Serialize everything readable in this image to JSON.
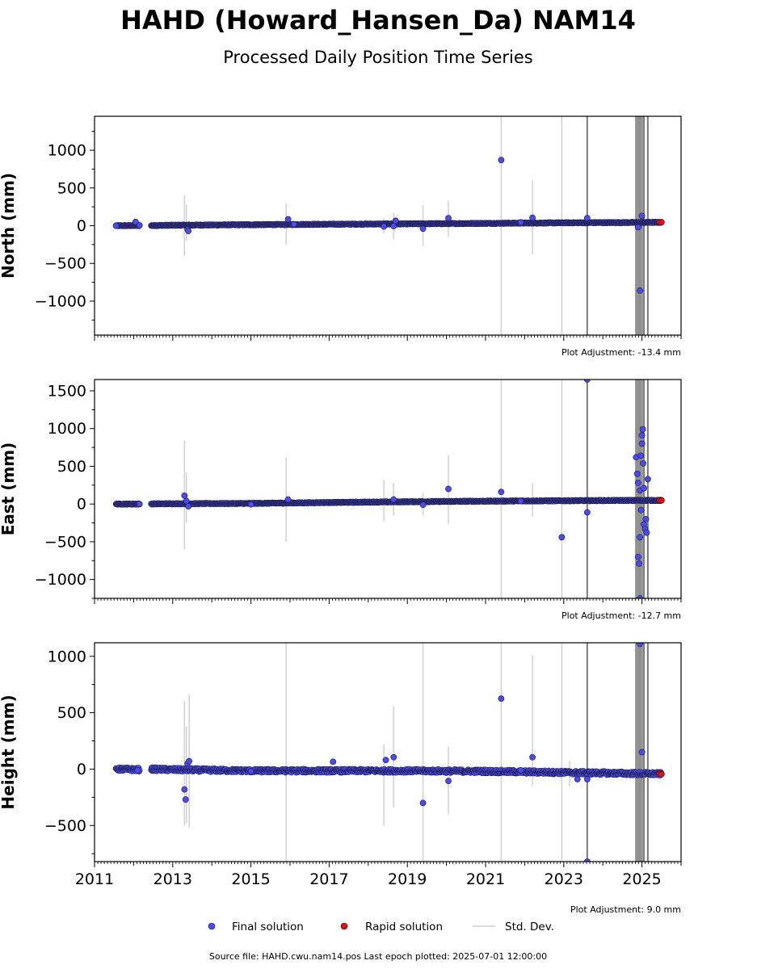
{
  "title": "HAHD (Howard_Hansen_Da) NAM14",
  "subtitle": "Processed Daily Position Time Series",
  "footer": "Source file: HAHD.cwu.nam14.pos  Last epoch plotted: 2025-07-01 12:00:00",
  "legend": {
    "final_label": "Final solution",
    "rapid_label": "Rapid solution",
    "std_label": "Std. Dev."
  },
  "colors": {
    "final": "#4b4bef",
    "final_edge": "#1a1a3a",
    "rapid": "#e01010",
    "std_light": "#d0d0d0",
    "std_dark": "#7a7a7a"
  },
  "chart_data": [
    {
      "type": "scatter",
      "ylabel": "North (mm)",
      "adjustment": "Plot Adjustment: -13.4 mm",
      "xlim": [
        2011,
        2026
      ],
      "ylim": [
        -1450,
        1450
      ],
      "yticks": [
        -1000,
        -500,
        0,
        500,
        1000
      ],
      "ytick_labels": [
        "−1000",
        "−500",
        "0",
        "500",
        "1000"
      ],
      "trend": [
        [
          2011.55,
          0
        ],
        [
          2012.15,
          2
        ],
        [
          2012.45,
          2
        ],
        [
          2013.0,
          6
        ],
        [
          2015.0,
          13
        ],
        [
          2017.0,
          19
        ],
        [
          2019.0,
          24
        ],
        [
          2021.0,
          31
        ],
        [
          2023.0,
          38
        ],
        [
          2025.0,
          43
        ],
        [
          2025.5,
          44
        ]
      ],
      "outliers": [
        [
          2011.55,
          0
        ],
        [
          2012.05,
          50
        ],
        [
          2012.15,
          5
        ],
        [
          2013.38,
          -50
        ],
        [
          2013.4,
          -70
        ],
        [
          2015.95,
          85
        ],
        [
          2016.1,
          20
        ],
        [
          2018.4,
          -10
        ],
        [
          2018.65,
          -5
        ],
        [
          2018.7,
          65
        ],
        [
          2019.4,
          -40
        ],
        [
          2020.05,
          100
        ],
        [
          2021.4,
          870
        ],
        [
          2021.9,
          45
        ],
        [
          2022.2,
          105
        ],
        [
          2023.6,
          100
        ],
        [
          2024.9,
          -20
        ],
        [
          2024.95,
          -860
        ],
        [
          2025.0,
          130
        ]
      ],
      "rapid": [
        [
          2025.45,
          44
        ],
        [
          2025.5,
          45
        ]
      ],
      "std_lines": [
        [
          2013.3,
          -400,
          400
        ],
        [
          2013.35,
          -200,
          280
        ],
        [
          2015.9,
          -250,
          290
        ],
        [
          2018.4,
          -100,
          100
        ],
        [
          2018.65,
          -180,
          170
        ],
        [
          2019.4,
          -270,
          270
        ],
        [
          2020.05,
          -150,
          330
        ],
        [
          2021.4,
          -1450,
          1450
        ],
        [
          2022.2,
          -380,
          600
        ],
        [
          2022.95,
          -1450,
          1450
        ]
      ],
      "std_dark_lines": [
        [
          2023.6,
          -1450,
          1450
        ],
        [
          2024.85,
          -1450,
          1450
        ],
        [
          2024.9,
          -1450,
          1450
        ],
        [
          2024.95,
          -1450,
          1450
        ],
        [
          2025.0,
          -1450,
          1450
        ],
        [
          2025.05,
          -1450,
          1450
        ],
        [
          2025.15,
          -1450,
          1450
        ]
      ]
    },
    {
      "type": "scatter",
      "ylabel": "East (mm)",
      "adjustment": "Plot Adjustment: -12.7 mm",
      "xlim": [
        2011,
        2026
      ],
      "ylim": [
        -1250,
        1650
      ],
      "yticks": [
        -1000,
        -500,
        0,
        500,
        1000,
        1500
      ],
      "ytick_labels": [
        "−1000",
        "−500",
        "0",
        "500",
        "1000",
        "1500"
      ],
      "trend": [
        [
          2011.55,
          0
        ],
        [
          2012.15,
          0
        ],
        [
          2012.45,
          2
        ],
        [
          2013.0,
          4
        ],
        [
          2015.0,
          8
        ],
        [
          2017.0,
          20
        ],
        [
          2019.0,
          30
        ],
        [
          2021.0,
          38
        ],
        [
          2023.0,
          44
        ],
        [
          2025.0,
          48
        ],
        [
          2025.5,
          48
        ]
      ],
      "outliers": [
        [
          2012.15,
          0
        ],
        [
          2013.3,
          110
        ],
        [
          2013.35,
          40
        ],
        [
          2013.4,
          -30
        ],
        [
          2015.0,
          -5
        ],
        [
          2015.95,
          60
        ],
        [
          2018.65,
          60
        ],
        [
          2019.4,
          -10
        ],
        [
          2020.05,
          200
        ],
        [
          2021.4,
          160
        ],
        [
          2021.9,
          40
        ],
        [
          2022.95,
          -440
        ],
        [
          2023.6,
          -110
        ],
        [
          2023.6,
          1650
        ],
        [
          2024.85,
          620
        ],
        [
          2024.88,
          400
        ],
        [
          2024.9,
          280
        ],
        [
          2024.9,
          -700
        ],
        [
          2024.93,
          -790
        ],
        [
          2024.95,
          -440
        ],
        [
          2024.95,
          180
        ],
        [
          2024.97,
          640
        ],
        [
          2024.98,
          -80
        ],
        [
          2025.0,
          910
        ],
        [
          2025.0,
          800
        ],
        [
          2025.02,
          990
        ],
        [
          2025.03,
          540
        ],
        [
          2025.05,
          -270
        ],
        [
          2025.05,
          210
        ],
        [
          2025.08,
          -330
        ],
        [
          2025.1,
          -200
        ],
        [
          2025.12,
          -380
        ],
        [
          2025.15,
          330
        ],
        [
          2024.95,
          -1250
        ]
      ],
      "rapid": [
        [
          2025.45,
          48
        ],
        [
          2025.5,
          48
        ]
      ],
      "std_lines": [
        [
          2013.3,
          -600,
          840
        ],
        [
          2013.35,
          -250,
          420
        ],
        [
          2015.9,
          -500,
          620
        ],
        [
          2018.4,
          -230,
          320
        ],
        [
          2018.65,
          -150,
          280
        ],
        [
          2019.4,
          -150,
          150
        ],
        [
          2020.05,
          -260,
          650
        ],
        [
          2021.4,
          -1250,
          1650
        ],
        [
          2022.2,
          -170,
          280
        ],
        [
          2022.95,
          -1250,
          1650
        ]
      ],
      "std_dark_lines": [
        [
          2023.6,
          -1250,
          1650
        ],
        [
          2024.85,
          -1250,
          1650
        ],
        [
          2024.9,
          -1250,
          1650
        ],
        [
          2024.95,
          -1250,
          1650
        ],
        [
          2025.0,
          -1250,
          1650
        ],
        [
          2025.05,
          -1250,
          1650
        ],
        [
          2025.15,
          -1250,
          1650
        ]
      ]
    },
    {
      "type": "scatter",
      "ylabel": "Height (mm)",
      "adjustment": "Plot Adjustment: 9.0 mm",
      "xlim": [
        2011,
        2026
      ],
      "ylim": [
        -820,
        1120
      ],
      "yticks": [
        -500,
        0,
        500,
        1000
      ],
      "ytick_labels": [
        "−500",
        "0",
        "500",
        "1000"
      ],
      "xticks": [
        2011,
        2013,
        2015,
        2017,
        2019,
        2021,
        2023,
        2025
      ],
      "xtick_labels": [
        "2011",
        "2013",
        "2015",
        "2017",
        "2019",
        "2021",
        "2023",
        "2025"
      ],
      "trend": [
        [
          2011.55,
          0
        ],
        [
          2012.15,
          -5
        ],
        [
          2012.45,
          0
        ],
        [
          2013.0,
          -5
        ],
        [
          2015.0,
          -15
        ],
        [
          2017.0,
          -15
        ],
        [
          2019.0,
          -15
        ],
        [
          2021.0,
          -20
        ],
        [
          2023.0,
          -30
        ],
        [
          2025.0,
          -40
        ],
        [
          2025.5,
          -42
        ]
      ],
      "outliers": [
        [
          2012.1,
          -10
        ],
        [
          2013.3,
          -180
        ],
        [
          2013.33,
          -270
        ],
        [
          2013.38,
          50
        ],
        [
          2013.42,
          70
        ],
        [
          2015.0,
          -20
        ],
        [
          2017.1,
          65
        ],
        [
          2018.45,
          80
        ],
        [
          2018.65,
          105
        ],
        [
          2019.4,
          -300
        ],
        [
          2020.05,
          -105
        ],
        [
          2021.4,
          625
        ],
        [
          2021.9,
          -10
        ],
        [
          2022.2,
          105
        ],
        [
          2023.35,
          -90
        ],
        [
          2023.6,
          -90
        ],
        [
          2023.6,
          -820
        ],
        [
          2024.95,
          1110
        ],
        [
          2025.0,
          150
        ]
      ],
      "rapid": [
        [
          2025.45,
          -40
        ],
        [
          2025.5,
          -45
        ]
      ],
      "std_lines": [
        [
          2013.3,
          -500,
          600
        ],
        [
          2013.35,
          -480,
          380
        ],
        [
          2013.42,
          -520,
          660
        ],
        [
          2015.9,
          -820,
          1120
        ],
        [
          2018.4,
          -500,
          220
        ],
        [
          2018.65,
          -340,
          560
        ],
        [
          2019.4,
          -820,
          1120
        ],
        [
          2020.05,
          -400,
          200
        ],
        [
          2021.4,
          -820,
          1120
        ],
        [
          2022.2,
          -150,
          1010
        ],
        [
          2022.95,
          -820,
          1120
        ],
        [
          2023.15,
          -150,
          70
        ]
      ],
      "std_dark_lines": [
        [
          2023.6,
          -820,
          1120
        ],
        [
          2024.85,
          -820,
          1120
        ],
        [
          2024.9,
          -820,
          1120
        ],
        [
          2024.95,
          -820,
          1120
        ],
        [
          2025.0,
          -820,
          1120
        ],
        [
          2025.05,
          -820,
          1120
        ],
        [
          2025.15,
          -820,
          1120
        ]
      ]
    }
  ]
}
